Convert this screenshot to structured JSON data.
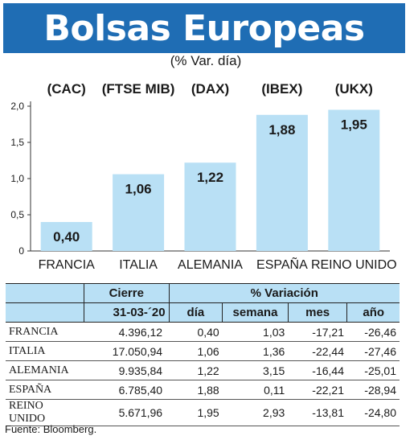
{
  "title": "Bolsas Europeas",
  "subtitle": "(% Var. día)",
  "chart_data": {
    "type": "bar",
    "categories": [
      "FRANCIA",
      "ITALIA",
      "ALEMANIA",
      "ESPAÑA",
      "REINO UNIDO"
    ],
    "indices": [
      "(CAC)",
      "(FTSE MIB)",
      "(DAX)",
      "(IBEX)",
      "(UKX)"
    ],
    "values": [
      0.4,
      1.06,
      1.22,
      1.88,
      1.95
    ],
    "value_labels": [
      "0,40",
      "1,06",
      "1,22",
      "1,88",
      "1,95"
    ],
    "ylim": [
      0,
      2.0
    ],
    "yticks": [
      0,
      0.5,
      1.0,
      1.5,
      2.0
    ],
    "ytick_labels": [
      "0",
      "0,5",
      "1,0",
      "1,5",
      "2,0"
    ],
    "bar_color": "#b9e0f5",
    "grid": false
  },
  "table": {
    "group_headers": {
      "cierre": "Cierre",
      "variacion": "% Variación"
    },
    "sub_headers": {
      "date": "31-03-´20",
      "dia": "día",
      "semana": "semana",
      "mes": "mes",
      "anio": "año"
    },
    "rows": [
      {
        "country": "FRANCIA",
        "cierre": "4.396,12",
        "dia": "0,40",
        "semana": "1,03",
        "mes": "-17,21",
        "anio": "-26,46"
      },
      {
        "country": "ITALIA",
        "cierre": "17.050,94",
        "dia": "1,06",
        "semana": "1,36",
        "mes": "-22,44",
        "anio": "-27,46"
      },
      {
        "country": "ALEMANIA",
        "cierre": "9.935,84",
        "dia": "1,22",
        "semana": "3,15",
        "mes": "-16,44",
        "anio": "-25,01"
      },
      {
        "country": "ESPAÑA",
        "cierre": "6.785,40",
        "dia": "1,88",
        "semana": "0,11",
        "mes": "-22,21",
        "anio": "-28,94"
      },
      {
        "country": "REINO UNIDO",
        "cierre": "5.671,96",
        "dia": "1,95",
        "semana": "2,93",
        "mes": "-13,81",
        "anio": "-24,80"
      }
    ]
  },
  "source": "Fuente: Bloomberg.",
  "colors": {
    "title_bg": "#1f6db4",
    "header_bg": "#b9e0f5"
  }
}
